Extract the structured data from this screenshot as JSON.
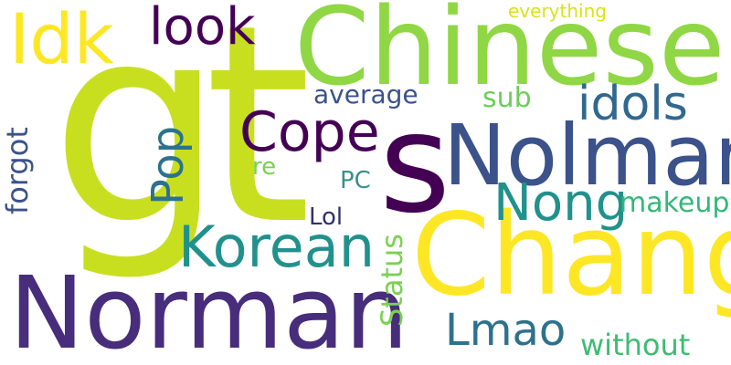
{
  "words": {
    "gt": "gt",
    "chinese": "Chinese",
    "s": "s",
    "nolman": "Nolman",
    "chang": "Chang",
    "norman": "Norman",
    "idk": "Idk",
    "look": "look",
    "korean": "Korean",
    "cope": "Cope",
    "idols": "idols",
    "nong": "Nong",
    "lmao": "Lmao",
    "pop": "Pop",
    "average": "average",
    "sub": "sub",
    "everything": "everything",
    "makeup": "makeup",
    "without": "without",
    "forgot": "forgot",
    "status": "Status",
    "lol": "Lol",
    "pc": "PC",
    "re": "re"
  },
  "colors": {
    "background": "#ffffff",
    "palette": [
      "#440154",
      "#472d7b",
      "#3b528b",
      "#31688e",
      "#2c728e",
      "#21918c",
      "#35b779",
      "#7ad151",
      "#c8df20",
      "#fde725"
    ]
  }
}
